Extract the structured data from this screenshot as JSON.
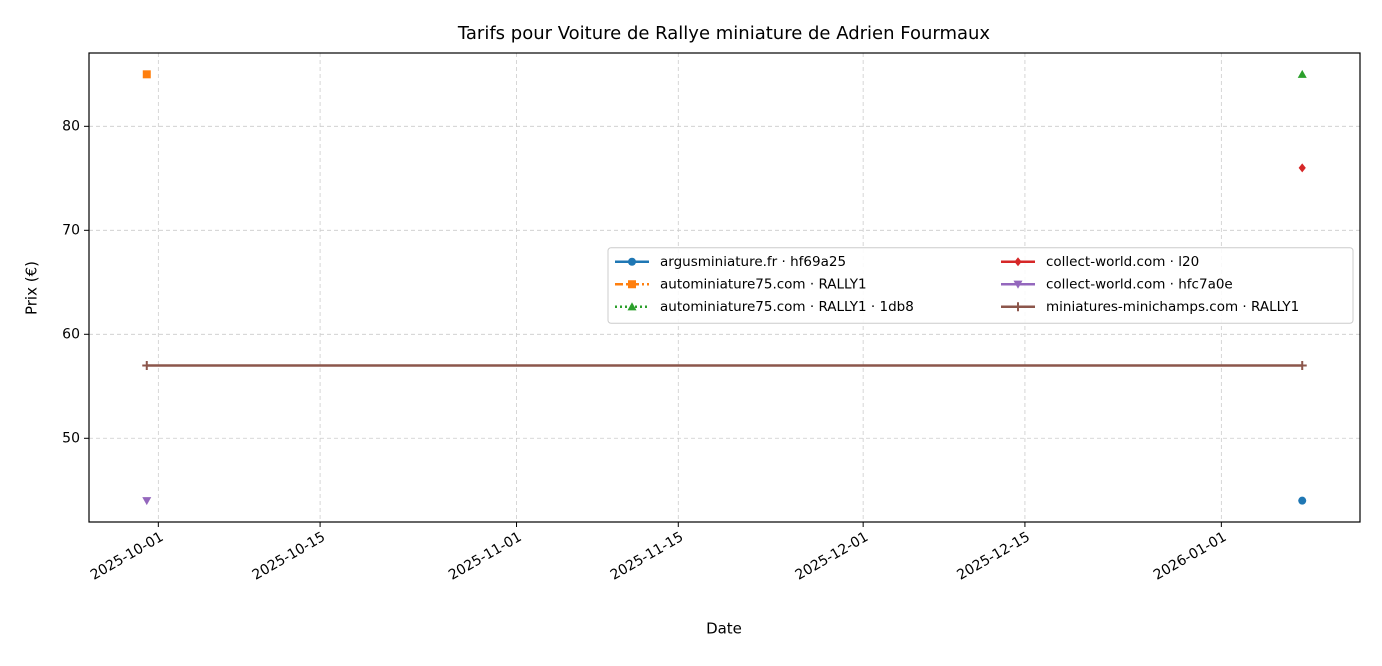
{
  "chart_data": {
    "type": "line",
    "title": "Tarifs pour Voiture de Rallye miniature de Adrien Fourmaux",
    "x_label": "Date",
    "y_label": "Prix (€)",
    "x": [
      "2025-09-30",
      "2026-01-08"
    ],
    "series": [
      {
        "name": "argusminiature.fr · hf69a25",
        "color": "#1f77b4",
        "marker": "circle",
        "linestyle": "solid",
        "values": [
          null,
          44
        ]
      },
      {
        "name": "autominiature75.com · RALLY1",
        "color": "#ff7f0e",
        "marker": "square",
        "linestyle": "dashdot",
        "values": [
          85,
          null
        ]
      },
      {
        "name": "autominiature75.com · RALLY1 · 1db8",
        "color": "#2ca02c",
        "marker": "triangle-up",
        "linestyle": "dotted",
        "values": [
          null,
          85
        ]
      },
      {
        "name": "collect-world.com · l20",
        "color": "#d62728",
        "marker": "diamond",
        "linestyle": "solid",
        "values": [
          null,
          76
        ]
      },
      {
        "name": "collect-world.com · hfc7a0e",
        "color": "#9467bd",
        "marker": "triangle-down",
        "linestyle": "solid",
        "values": [
          44,
          null
        ]
      },
      {
        "name": "miniatures-minichamps.com · RALLY1",
        "color": "#8c564b",
        "marker": "plus",
        "linestyle": "solid",
        "values": [
          57,
          57
        ]
      }
    ],
    "xlim": [
      "2025-09-25",
      "2026-01-13"
    ],
    "xticks": [
      "2025-10-01",
      "2025-10-15",
      "2025-11-01",
      "2025-11-15",
      "2025-12-01",
      "2025-12-15",
      "2026-01-01"
    ],
    "ylim": [
      41.95,
      87.05
    ],
    "yticks": [
      50,
      60,
      70,
      80
    ],
    "grid": true,
    "legend_loc": "center right",
    "legend_columns": 2
  }
}
